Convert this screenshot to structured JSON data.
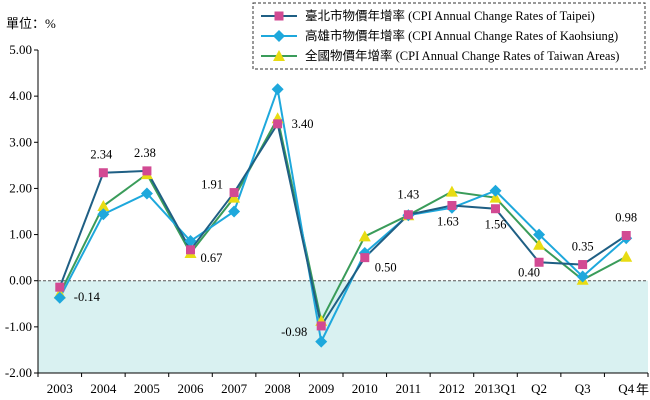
{
  "chart_data": {
    "type": "line",
    "unit_label": "單位：%",
    "x_unit_label": "年",
    "categories": [
      "2003",
      "2004",
      "2005",
      "2006",
      "2007",
      "2008",
      "2009",
      "2010",
      "2011",
      "2012",
      "2013Q1",
      "Q2",
      "Q3",
      "Q4"
    ],
    "ylim": [
      -2.0,
      5.0
    ],
    "y_ticks": [
      "5.00",
      "4.00",
      "3.00",
      "2.00",
      "1.00",
      "0.00",
      "-1.00",
      "-2.00"
    ],
    "shaded_below_zero": true,
    "shade_color": "#d9f1f1",
    "legend_position": "top-right",
    "series": [
      {
        "name": "臺北市物價年增率 (CPI Annual Change Rates of Taipei)",
        "line_color": "#1f5f84",
        "marker_color": "#d24a93",
        "marker": "square",
        "values": [
          -0.14,
          2.34,
          2.38,
          0.67,
          1.91,
          3.4,
          -0.98,
          0.5,
          1.43,
          1.63,
          1.56,
          0.4,
          0.35,
          0.98
        ]
      },
      {
        "name": "高雄市物價年增率 (CPI Annual Change Rates of Kaohsiung)",
        "line_color": "#1ea8dc",
        "marker_color": "#1ea8dc",
        "marker": "diamond",
        "values": [
          -0.37,
          1.44,
          1.89,
          0.86,
          1.5,
          4.15,
          -1.32,
          0.6,
          1.42,
          1.58,
          1.95,
          1.0,
          0.09,
          0.92
        ]
      },
      {
        "name": "全國物價年增率 (CPI Annual Change Rates of Taiwan Areas)",
        "line_color": "#3a9c5a",
        "marker_color": "#e8dc12",
        "marker": "triangle",
        "values": [
          -0.28,
          1.62,
          2.31,
          0.6,
          1.8,
          3.52,
          -0.87,
          0.96,
          1.42,
          1.93,
          1.8,
          0.78,
          0.02,
          0.52
        ]
      }
    ],
    "data_labels": [
      {
        "category_index": 0,
        "text": "-0.14"
      },
      {
        "category_index": 1,
        "text": "2.34"
      },
      {
        "category_index": 2,
        "text": "2.38"
      },
      {
        "category_index": 3,
        "text": "0.67"
      },
      {
        "category_index": 4,
        "text": "1.91"
      },
      {
        "category_index": 5,
        "text": "3.40"
      },
      {
        "category_index": 6,
        "text": "-0.98"
      },
      {
        "category_index": 7,
        "text": "0.50"
      },
      {
        "category_index": 8,
        "text": "1.43"
      },
      {
        "category_index": 9,
        "text": "1.63"
      },
      {
        "category_index": 10,
        "text": "1.56"
      },
      {
        "category_index": 11,
        "text": "0.40"
      },
      {
        "category_index": 12,
        "text": "0.35"
      },
      {
        "category_index": 13,
        "text": "0.98"
      }
    ]
  }
}
